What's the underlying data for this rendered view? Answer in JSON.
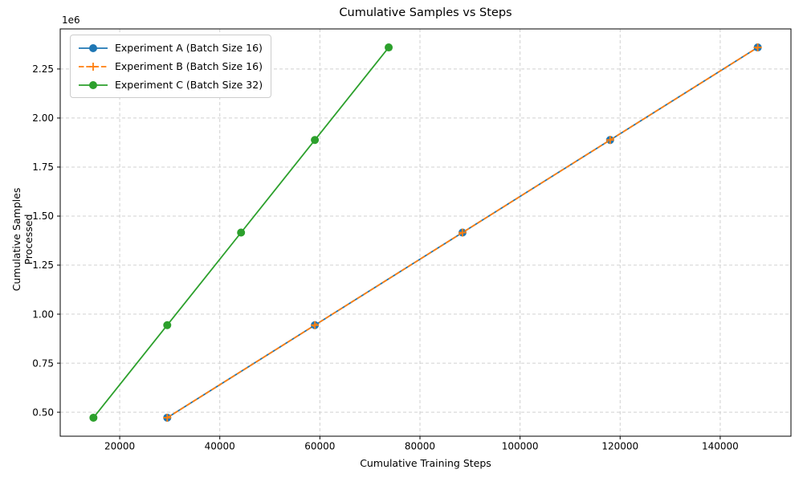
{
  "chart_data": {
    "type": "line",
    "title": "Cumulative Samples vs Steps",
    "xlabel": "Cumulative Training Steps",
    "ylabel": "Cumulative Samples Processed",
    "y_offset_text": "1e6",
    "xlim": [
      8113,
      154137
    ],
    "ylim": [
      377600,
      2454400
    ],
    "x_ticks": [
      20000,
      40000,
      60000,
      80000,
      100000,
      120000,
      140000
    ],
    "x_tick_labels": [
      "20000",
      "40000",
      "60000",
      "80000",
      "100000",
      "120000",
      "140000"
    ],
    "y_ticks": [
      500000,
      750000,
      1000000,
      1250000,
      1500000,
      1750000,
      2000000,
      2250000
    ],
    "y_tick_labels": [
      "0.50",
      "0.75",
      "1.00",
      "1.25",
      "1.50",
      "1.75",
      "2.00",
      "2.25"
    ],
    "grid": true,
    "legend_position": "upper left",
    "series": [
      {
        "name": "Experiment A (Batch Size 16)",
        "slug": "experiment-a",
        "color": "#1f77b4",
        "line_style": "solid",
        "marker": "circle",
        "x": [
          29500,
          59000,
          88500,
          118000,
          147500
        ],
        "y": [
          472000,
          944000,
          1416000,
          1888000,
          2360000
        ]
      },
      {
        "name": "Experiment B (Batch Size 16)",
        "slug": "experiment-b",
        "color": "#ff7f0e",
        "line_style": "dashed",
        "marker": "plus",
        "x": [
          29500,
          59000,
          88500,
          118000,
          147500
        ],
        "y": [
          472000,
          944000,
          1416000,
          1888000,
          2360000
        ]
      },
      {
        "name": "Experiment C (Batch Size 32)",
        "slug": "experiment-c",
        "color": "#2ca02c",
        "line_style": "solid",
        "marker": "circle",
        "x": [
          14750,
          29500,
          44250,
          59000,
          73750
        ],
        "y": [
          472000,
          944000,
          1416000,
          1888000,
          2360000
        ]
      }
    ],
    "colors": {
      "grid": "#d0d0d0",
      "spine": "#000000",
      "text": "#000000",
      "background": "#ffffff"
    }
  }
}
